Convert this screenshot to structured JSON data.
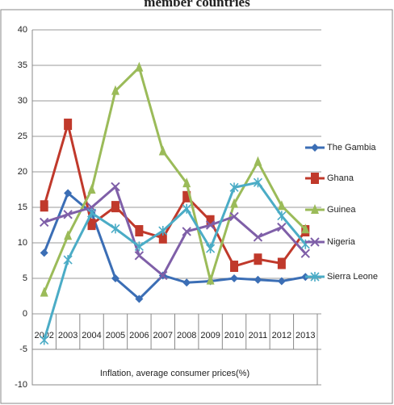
{
  "chart_data": {
    "type": "line",
    "title": "member countries",
    "x_label": "Inflation, average consumer prices(%)",
    "categories": [
      "2002",
      "2003",
      "2004",
      "2005",
      "2006",
      "2007",
      "2008",
      "2009",
      "2010",
      "2011",
      "2012",
      "2013"
    ],
    "series": [
      {
        "name": "The Gambia",
        "color": "#3b6eb5",
        "marker": "diamond",
        "values": [
          8.6,
          17.0,
          14.2,
          5.0,
          2.1,
          5.4,
          4.4,
          4.6,
          5.0,
          4.8,
          4.6,
          5.2
        ]
      },
      {
        "name": "Ghana",
        "color": "#c0392b",
        "marker": "square",
        "values": [
          15.2,
          26.7,
          12.6,
          15.1,
          11.7,
          10.7,
          16.5,
          13.1,
          6.7,
          7.7,
          7.1,
          11.7
        ]
      },
      {
        "name": "Guinea",
        "color": "#9bbb59",
        "marker": "triangle",
        "values": [
          3.0,
          11.0,
          17.5,
          31.4,
          34.7,
          22.9,
          18.4,
          4.7,
          15.5,
          21.4,
          15.2,
          11.9
        ]
      },
      {
        "name": "Nigeria",
        "color": "#7f5fa8",
        "marker": "x",
        "values": [
          12.9,
          14.0,
          15.0,
          17.9,
          8.2,
          5.4,
          11.6,
          12.5,
          13.7,
          10.8,
          12.2,
          8.5
        ]
      },
      {
        "name": "Sierra Leone",
        "color": "#4bacc6",
        "marker": "star",
        "values": [
          -3.7,
          7.6,
          14.2,
          12.0,
          9.5,
          11.7,
          14.8,
          9.2,
          17.8,
          18.5,
          13.8,
          9.8
        ]
      }
    ],
    "ylim": [
      -10,
      40
    ],
    "yticks": [
      -10,
      -5,
      0,
      5,
      10,
      15,
      20,
      25,
      30,
      35,
      40
    ],
    "grid": true,
    "legend": "right"
  }
}
